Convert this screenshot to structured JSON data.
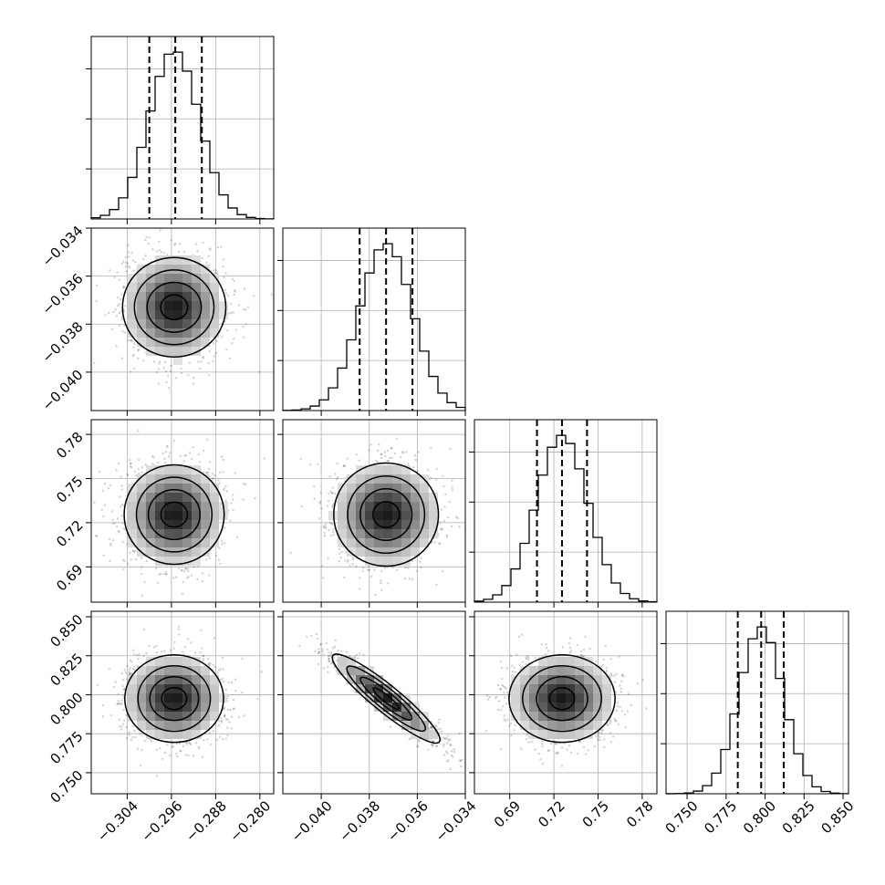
{
  "chart_data": {
    "type": "scatter",
    "title": "",
    "parameters": [
      {
        "index": 0,
        "mean": -0.2955,
        "std": 0.0045,
        "range": [
          -0.3105,
          -0.2775
        ],
        "ticks": [
          -0.304,
          -0.296,
          -0.288,
          -0.28
        ],
        "tick_labels": [
          "−0.304",
          "−0.296",
          "−0.288",
          "−0.280"
        ],
        "quantiles": [
          -0.3,
          -0.2953,
          -0.2905
        ]
      },
      {
        "index": 1,
        "mean": -0.0373,
        "std": 0.0011,
        "range": [
          -0.0416,
          -0.034
        ],
        "ticks": [
          -0.04,
          -0.038,
          -0.036,
          -0.034
        ],
        "tick_labels": [
          "−0.040",
          "−0.038",
          "−0.036",
          "−0.034"
        ],
        "quantiles": [
          -0.0384,
          -0.0373,
          -0.0362
        ]
      },
      {
        "index": 2,
        "mean": 0.7255,
        "std": 0.0175,
        "range": [
          0.666,
          0.79
        ],
        "ticks": [
          0.69,
          0.72,
          0.75,
          0.78
        ],
        "tick_labels": [
          "0.69",
          "0.72",
          "0.75",
          "0.78"
        ],
        "quantiles": [
          0.7085,
          0.7255,
          0.7425
        ]
      },
      {
        "index": 3,
        "mean": 0.7975,
        "std": 0.014,
        "range": [
          0.7365,
          0.8535
        ],
        "ticks": [
          0.75,
          0.775,
          0.8,
          0.825,
          0.85
        ],
        "tick_labels": [
          "0.750",
          "0.775",
          "0.800",
          "0.825",
          "0.850"
        ],
        "quantiles": [
          0.7825,
          0.7975,
          0.812
        ]
      }
    ],
    "correlations": [
      {
        "row": 1,
        "col": 0,
        "rho": 0.0
      },
      {
        "row": 2,
        "col": 0,
        "rho": 0.0
      },
      {
        "row": 2,
        "col": 1,
        "rho": 0.0
      },
      {
        "row": 3,
        "col": 0,
        "rho": 0.0
      },
      {
        "row": 3,
        "col": 1,
        "rho": -0.92
      },
      {
        "row": 3,
        "col": 2,
        "rho": 0.0
      }
    ],
    "histogram_bins": 20,
    "contour_levels_sigma": [
      0.5,
      1.0,
      1.5,
      2.0
    ],
    "grid": true,
    "histogram_style": "step",
    "quantile_line_style": "dashed"
  },
  "palette": {
    "background": "#ffffff",
    "frame": "#000000",
    "grid": "#b0b0b0",
    "points": "#000000"
  }
}
